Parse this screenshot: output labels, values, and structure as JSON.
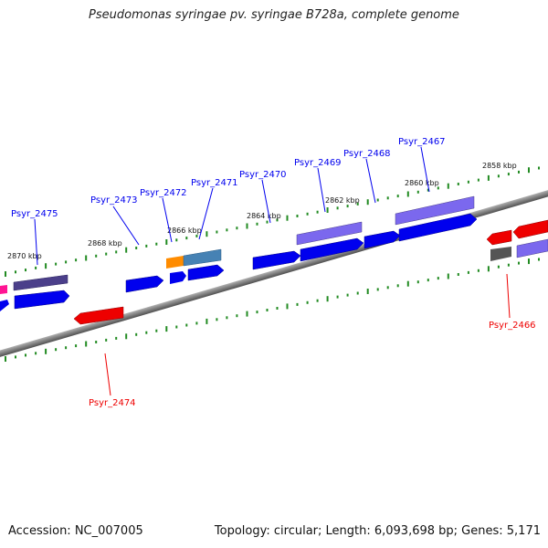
{
  "title": "Pseudomonas syringae pv. syringae B728a, complete genome",
  "footer": {
    "accession": "Accession: NC_007005",
    "topology": "Topology: circular; Length: 6,093,698 bp; Genes: 5,171"
  },
  "colors": {
    "forward_gene": "#0000ee",
    "reverse_gene": "#ee0000",
    "feature_purple": "#6a5acd",
    "feature_dark_purple": "#4b3f8a",
    "feature_steelblue": "#4682b4",
    "feature_orange": "#ff8c00",
    "feature_magenta": "#ff1493",
    "feature_gray": "#555555",
    "tick": "#228b22",
    "backbone": "#808080"
  },
  "scale_labels": [
    "2870 kbp",
    "2868 kbp",
    "2866 kbp",
    "2864 kbp",
    "2862 kbp",
    "2860 kbp",
    "2858 kbp"
  ],
  "gene_labels": [
    {
      "text": "Psyr_2475",
      "strand": "forward"
    },
    {
      "text": "Psyr_2473",
      "strand": "forward"
    },
    {
      "text": "Psyr_2472",
      "strand": "forward"
    },
    {
      "text": "Psyr_2471",
      "strand": "forward"
    },
    {
      "text": "Psyr_2470",
      "strand": "forward"
    },
    {
      "text": "Psyr_2469",
      "strand": "forward"
    },
    {
      "text": "Psyr_2468",
      "strand": "forward"
    },
    {
      "text": "Psyr_2467",
      "strand": "forward"
    },
    {
      "text": "Psyr_2474",
      "strand": "reverse"
    },
    {
      "text": "Psyr_2466",
      "strand": "reverse"
    }
  ]
}
